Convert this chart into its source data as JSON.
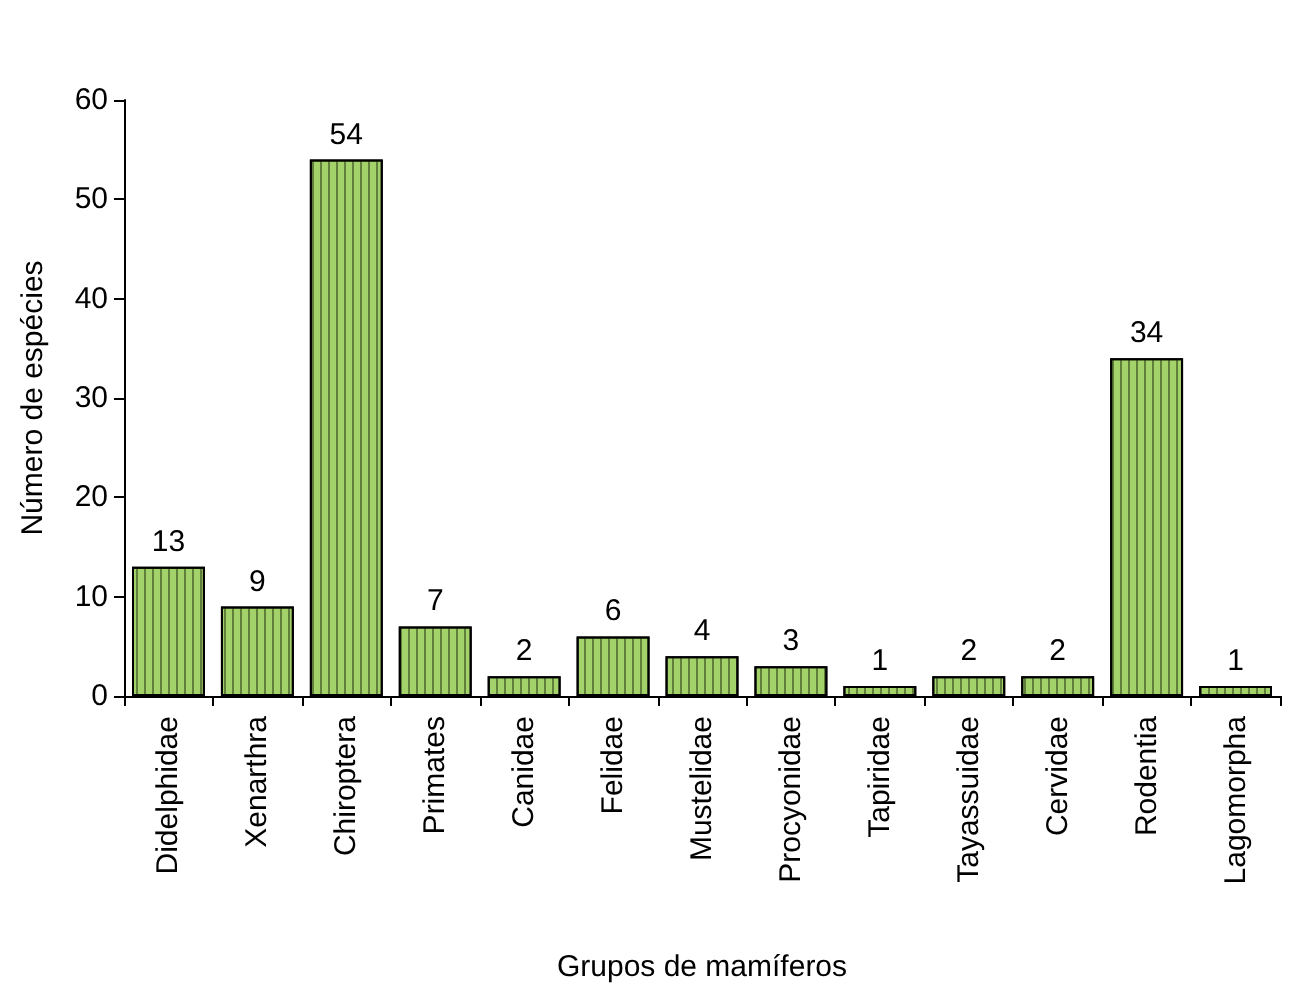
{
  "chart_data": {
    "type": "bar",
    "xlabel": "Grupos de mamíferos",
    "ylabel": "Número de espécies",
    "categories": [
      "Didelphidae",
      "Xenarthra",
      "Chiroptera",
      "Primates",
      "Canidae",
      "Felidae",
      "Mustelidae",
      "Procyonidae",
      "Tapiridae",
      "Tayassuidae",
      "Cervidae",
      "Rodentia",
      "Lagomorpha"
    ],
    "values": [
      13,
      9,
      54,
      7,
      2,
      6,
      4,
      3,
      1,
      2,
      2,
      34,
      1
    ],
    "color": "#a3d16a",
    "ylim": [
      0,
      60
    ],
    "yticks": [
      0,
      10,
      20,
      30,
      40,
      50,
      60
    ],
    "grid": false,
    "data_labels": true
  }
}
